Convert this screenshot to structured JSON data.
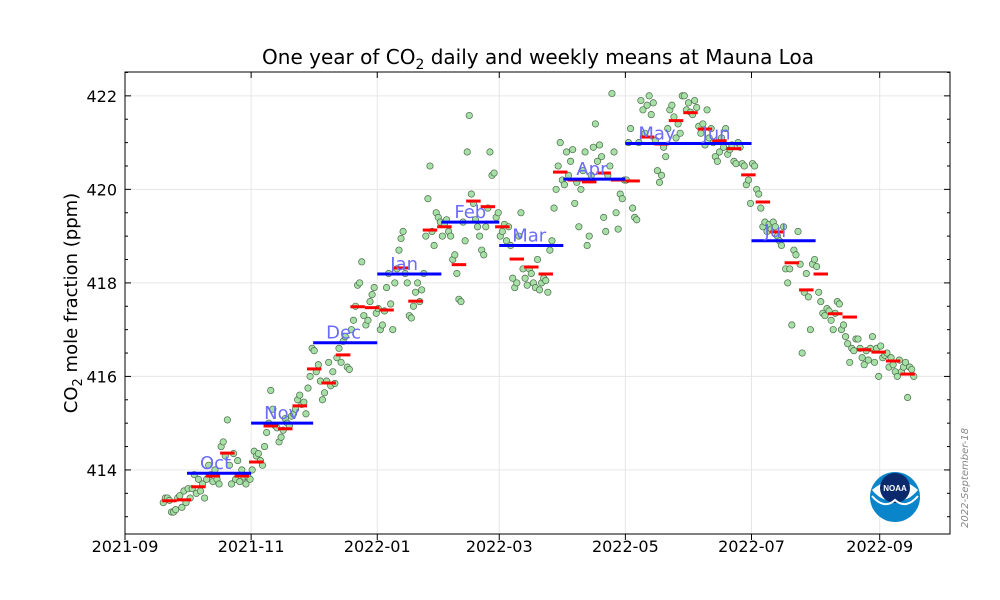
{
  "chart_data": {
    "type": "scatter",
    "title": "One year of CO",
    "title_sub": "2",
    "title_rest": " daily and weekly means at Mauna Loa",
    "ylabel": "CO",
    "ylabel_sub": "2",
    "ylabel_rest": " mole fraction (ppm)",
    "xlabel": "",
    "xlim": [
      "2021-09-01",
      "2022-10-05"
    ],
    "ylim": [
      412.63,
      422.51
    ],
    "grid": true,
    "xticks": [
      {
        "date": "2021-09-01",
        "label": "2021-09"
      },
      {
        "date": "2021-11-01",
        "label": "2021-11"
      },
      {
        "date": "2022-01-01",
        "label": "2022-01"
      },
      {
        "date": "2022-03-01",
        "label": "2022-03"
      },
      {
        "date": "2022-05-01",
        "label": "2022-05"
      },
      {
        "date": "2022-07-01",
        "label": "2022-07"
      },
      {
        "date": "2022-09-01",
        "label": "2022-09"
      }
    ],
    "yticks": [
      414,
      416,
      418,
      420,
      422
    ],
    "colors": {
      "daily": "#a6e0a6",
      "daily_edge": "#4a6a4a",
      "weekly": "#ff0000",
      "monthly": "#0000ff",
      "month_label": "#6b6bff"
    },
    "daily": {
      "start": "2021-09-19",
      "values": [
        413.3,
        413.4,
        413.4,
        413.35,
        413.1,
        413.1,
        413.15,
        413.4,
        413.45,
        413.2,
        413.55,
        413.3,
        413.6,
        413.4,
        413.6,
        413.9,
        413.5,
        413.8,
        413.55,
        413.7,
        413.4,
        413.8,
        414.1,
        413.9,
        413.75,
        414.0,
        413.8,
        413.7,
        414.5,
        414.6,
        414.3,
        415.07,
        414.1,
        413.7,
        414.35,
        413.8,
        414.2,
        413.75,
        414.0,
        413.85,
        413.7,
        413.85,
        413.8,
        414.0,
        414.4,
        414.3,
        414.35,
        414.2,
        414.1,
        414.5,
        414.8,
        415.0,
        415.7,
        415.3,
        414.95,
        414.9,
        414.6,
        414.7,
        414.85,
        415.1,
        415.0,
        414.95,
        415.15,
        415.2,
        415.3,
        415.5,
        415.6,
        415.4,
        415.45,
        415.2,
        415.75,
        416.0,
        416.6,
        416.55,
        416.1,
        416.25,
        415.9,
        415.5,
        415.65,
        415.9,
        416.3,
        415.8,
        416.1,
        415.85,
        416.4,
        416.6,
        416.3,
        416.75,
        416.85,
        416.2,
        416.15,
        417.0,
        417.2,
        417.5,
        417.95,
        418.0,
        418.45,
        417.3,
        417.1,
        417.2,
        417.6,
        417.75,
        417.9,
        417.35,
        417.45,
        417.0,
        417.1,
        417.4,
        417.9,
        418.2,
        417.55,
        417.0,
        418.0,
        418.3,
        418.7,
        418.95,
        419.1,
        418.2,
        418.0,
        417.3,
        417.25,
        417.5,
        417.8,
        418.0,
        417.6,
        417.85,
        418.2,
        419.0,
        419.8,
        420.5,
        419.1,
        418.8,
        419.5,
        419.4,
        419.3,
        419.0,
        419.25,
        419.35,
        419.1,
        419.0,
        418.5,
        418.6,
        418.2,
        417.65,
        417.6,
        419.3,
        418.9,
        420.8,
        421.58,
        419.9,
        419.7,
        419.35,
        419.2,
        419.0,
        418.7,
        418.6,
        419.2,
        419.6,
        420.8,
        420.3,
        420.35,
        419.4,
        419.5,
        419.0,
        419.1,
        419.25,
        418.9,
        419.2,
        418.8,
        418.1,
        417.9,
        418.0,
        419.0,
        419.5,
        418.3,
        418.1,
        417.95,
        418.3,
        418.2,
        418.0,
        417.9,
        418.5,
        417.85,
        418.0,
        418.1,
        418.05,
        417.8,
        418.7,
        418.9,
        419.6,
        420.0,
        420.5,
        421.0,
        420.2,
        420.1,
        420.8,
        420.3,
        420.6,
        420.85,
        419.7,
        420.15,
        419.2,
        420.0,
        420.4,
        420.8,
        418.8,
        419.0,
        420.3,
        420.9,
        421.4,
        420.6,
        420.95,
        420.7,
        419.4,
        419.1,
        420.3,
        420.5,
        422.05,
        420.8,
        419.5,
        419.15,
        419.9,
        419.8,
        420.2,
        420.2,
        421.0,
        421.3,
        419.6,
        419.4,
        419.35,
        421.0,
        421.9,
        421.7,
        421.2,
        421.8,
        422.0,
        421.6,
        421.85,
        421.05,
        420.4,
        420.15,
        420.3,
        420.9,
        420.7,
        421.3,
        421.7,
        421.8,
        421.55,
        421.1,
        421.4,
        421.2,
        422.0,
        422.0,
        421.7,
        421.85,
        421.65,
        421.6,
        421.9,
        421.75,
        421.35,
        421.2,
        421.4,
        420.95,
        421.7,
        421.1,
        421.3,
        421.0,
        420.7,
        420.6,
        420.8,
        421.1,
        420.9,
        421.3,
        420.75,
        420.85,
        420.95,
        420.6,
        420.55,
        421.0,
        420.9,
        420.55,
        420.5,
        420.1,
        420.2,
        419.7,
        420.55,
        420.5,
        420.0,
        419.9,
        419.6,
        419.2,
        419.3,
        419.1,
        419.25,
        419.15,
        419.3,
        419.2,
        419.0,
        418.9,
        418.8,
        419.2,
        418.3,
        418.0,
        418.3,
        417.1,
        418.7,
        418.6,
        419.1,
        418.4,
        416.5,
        417.8,
        418.2,
        417.7,
        417.0,
        418.4,
        418.5,
        418.35,
        417.8,
        417.6,
        417.35,
        417.3,
        417.45,
        417.4,
        417.2,
        417.0,
        417.35,
        417.6,
        417.55,
        417.0,
        417.1,
        416.85,
        416.7,
        416.3,
        416.6,
        416.55,
        416.8,
        416.8,
        416.6,
        416.4,
        416.25,
        416.55,
        416.35,
        416.6,
        416.85,
        416.3,
        416.6,
        416.0,
        416.65,
        416.4,
        416.45,
        416.5,
        416.2,
        416.4,
        416.25,
        416.1,
        416.0,
        416.35,
        416.1,
        416.2,
        416.3,
        415.55,
        416.2,
        416.15,
        416.0
      ]
    },
    "weekly": {
      "start": "2021-09-19",
      "step_days": 7,
      "values": [
        413.34,
        413.36,
        413.64,
        413.87,
        414.36,
        413.87,
        414.17,
        414.94,
        414.88,
        415.37,
        416.16,
        415.86,
        416.46,
        417.49,
        417.47,
        417.42,
        418.32,
        417.61,
        419.13,
        419.2,
        418.39,
        419.75,
        419.63,
        419.2,
        418.51,
        418.34,
        418.19,
        420.37,
        420.2,
        420.16,
        420.35,
        420.2,
        420.18,
        421.12,
        420.97,
        421.47,
        421.64,
        421.29,
        421.04,
        420.87,
        420.31,
        419.73,
        419.09,
        418.43,
        417.85,
        418.19,
        417.34,
        417.27,
        416.57,
        416.52,
        416.33,
        416.05
      ]
    },
    "monthly": [
      {
        "label": "Oct",
        "start": "2021-10-01",
        "end": "2021-10-31",
        "value": 413.93
      },
      {
        "label": "Nov",
        "start": "2021-11-01",
        "end": "2021-11-30",
        "value": 415.0
      },
      {
        "label": "Dec",
        "start": "2021-12-01",
        "end": "2021-12-31",
        "value": 416.72
      },
      {
        "label": "Jan",
        "start": "2022-01-01",
        "end": "2022-01-31",
        "value": 418.19
      },
      {
        "label": "Feb",
        "start": "2022-02-01",
        "end": "2022-02-28",
        "value": 419.3
      },
      {
        "label": "Mar",
        "start": "2022-03-01",
        "end": "2022-03-31",
        "value": 418.8
      },
      {
        "label": "Apr",
        "start": "2022-04-01",
        "end": "2022-04-30",
        "value": 420.22
      },
      {
        "label": "May",
        "start": "2022-05-01",
        "end": "2022-05-31",
        "value": 420.98
      },
      {
        "label": "Jun",
        "start": "2022-06-01",
        "end": "2022-06-30",
        "value": 420.98
      },
      {
        "label": "Jul",
        "start": "2022-07-01",
        "end": "2022-07-31",
        "value": 418.9
      }
    ]
  },
  "logo": {
    "text": "NOAA"
  },
  "date_stamp": "2022-September-18"
}
